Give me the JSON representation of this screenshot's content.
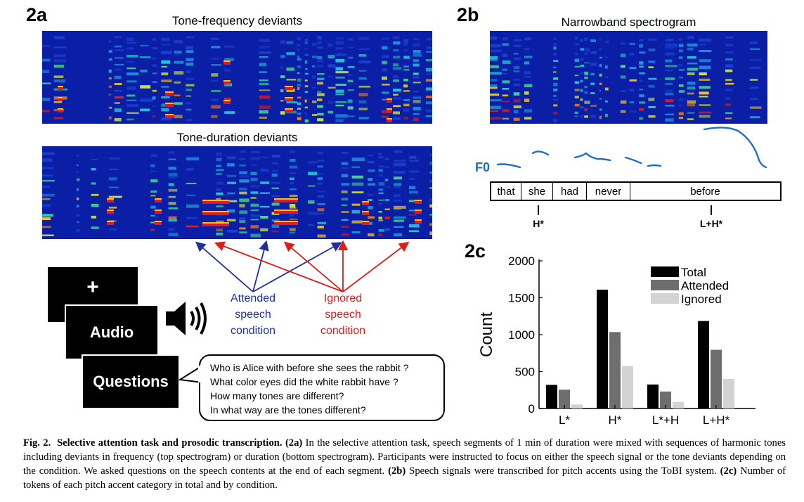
{
  "panel_2a": {
    "label": "2a",
    "top_title": "Tone-frequency deviants",
    "bottom_title": "Tone-duration deviants",
    "blocks": {
      "fixation": "+",
      "audio": "Audio",
      "questions": "Questions"
    },
    "attended_label": [
      "Attended",
      "speech",
      "condition"
    ],
    "ignored_label": [
      "Ignored",
      "speech",
      "condition"
    ],
    "questions": [
      "Who is Alice with before she sees the rabbit ?",
      "What color eyes did the white rabbit have ?",
      "How many tones are different?",
      "In what way are the tones different?"
    ],
    "colors": {
      "attended": "#1f2fa0",
      "ignored": "#e01b1b",
      "spectrogram_bg": "#0a1fa6"
    },
    "icons": [
      "speaker-icon"
    ]
  },
  "panel_2b": {
    "label": "2b",
    "title": "Narrowband spectrogram",
    "f0_label": "F0",
    "words": [
      "that",
      "she",
      "had",
      "never",
      "before"
    ],
    "accents": [
      "H*",
      "L+H*"
    ],
    "colors": {
      "f0": "#1f6fc8"
    }
  },
  "panel_2c": {
    "label": "2c"
  },
  "chart_data": {
    "type": "bar",
    "categories": [
      "L*",
      "H*",
      "L*+H",
      "L+H*"
    ],
    "series": [
      {
        "name": "Total",
        "color": "#000000",
        "values": [
          320,
          1610,
          325,
          1185
        ]
      },
      {
        "name": "Attended",
        "color": "#6e6e6e",
        "values": [
          255,
          1035,
          230,
          795
        ]
      },
      {
        "name": "Ignored",
        "color": "#d3d3d3",
        "values": [
          55,
          575,
          90,
          400
        ]
      }
    ],
    "ylabel": "Count",
    "xlabel": "",
    "ylim": [
      0,
      2000
    ],
    "yticks": [
      0,
      500,
      1000,
      1500,
      2000
    ],
    "legend_position": "top-right",
    "grid": false
  },
  "caption": {
    "figure": "Fig. 2.",
    "title": "Selective attention task and prosodic transcription.",
    "tag_a": "(2a)",
    "text_a": " In the selective attention task, speech segments of 1 min of duration were mixed with sequences of harmonic tones including deviants in frequency (top spectrogram) or duration (bottom spectrogram). Participants were instructed to focus on either the speech signal or the tone deviants depending on the condition. We asked questions on the speech contents at the end of each segment. ",
    "tag_b": "(2b)",
    "text_b": " Speech signals were transcribed for pitch accents using the ToBI system. ",
    "tag_c": "(2c)",
    "text_c": " Number of tokens of each pitch accent category in total and by condition."
  }
}
